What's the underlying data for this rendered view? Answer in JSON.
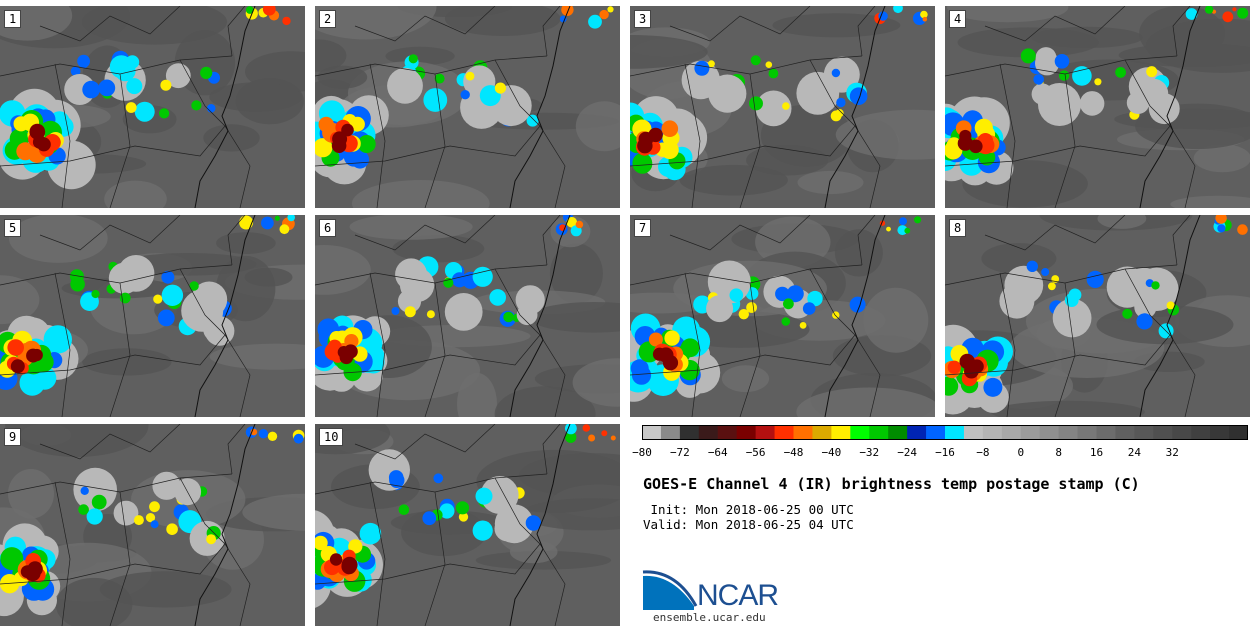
{
  "title": "GOES-E Channel 4 (IR) brightness temp postage stamp (C)",
  "init_line": " Init: Mon 2018-06-25 00 UTC",
  "valid_line": "Valid: Mon 2018-06-25 04 UTC",
  "logo_text": "NCAR",
  "site": "ensemble.ucar.edu",
  "panels": [
    {
      "label": "1"
    },
    {
      "label": "2"
    },
    {
      "label": "3"
    },
    {
      "label": "4"
    },
    {
      "label": "5"
    },
    {
      "label": "6"
    },
    {
      "label": "7"
    },
    {
      "label": "8"
    },
    {
      "label": "9"
    },
    {
      "label": "10"
    }
  ],
  "colorbar": {
    "colors": [
      "#c8c8c8",
      "#8a8a8a",
      "#303030",
      "#3a1a1a",
      "#5a1010",
      "#7a0000",
      "#b41010",
      "#ff3000",
      "#ff7000",
      "#dcaa00",
      "#ffee00",
      "#00ff00",
      "#00c800",
      "#008c00",
      "#0024b4",
      "#0064ff",
      "#00e6ff",
      "#c0c0c0",
      "#b4b4b4",
      "#a8a8a8",
      "#9c9c9c",
      "#909090",
      "#848484",
      "#787878",
      "#6c6c6c",
      "#606060",
      "#585858",
      "#505050",
      "#484848",
      "#404040",
      "#383838",
      "#303030"
    ],
    "ticks": [
      "−80",
      "−72",
      "−64",
      "−56",
      "−48",
      "−40",
      "−32",
      "−24",
      "−16",
      "−8",
      "0",
      "8",
      "16",
      "24",
      "32"
    ]
  }
}
